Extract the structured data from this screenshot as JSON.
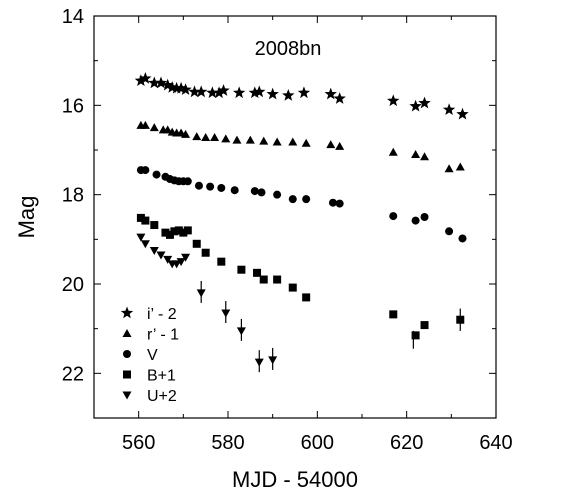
{
  "chart_data": {
    "type": "scatter",
    "title": "2008bn",
    "xlabel": "MJD - 54000",
    "ylabel": "Mag",
    "xlim": [
      550,
      640
    ],
    "ylim": [
      14,
      23
    ],
    "y_inverted": true,
    "xticks": [
      560,
      580,
      600,
      620,
      640
    ],
    "yticks": [
      14,
      16,
      18,
      20,
      22
    ],
    "xtick_labels": [
      "560",
      "580",
      "600",
      "620",
      "640"
    ],
    "ytick_labels": [
      "14",
      "16",
      "18",
      "20",
      "22"
    ],
    "grid": false,
    "legend_position": "bottom-left",
    "series": [
      {
        "name": "i’ - 2",
        "marker": "star",
        "points": [
          [
            560.5,
            15.45
          ],
          [
            561.5,
            15.4
          ],
          [
            563.5,
            15.5
          ],
          [
            565.0,
            15.5
          ],
          [
            566.5,
            15.55
          ],
          [
            567.5,
            15.6
          ],
          [
            568.5,
            15.62
          ],
          [
            569.5,
            15.62
          ],
          [
            570.5,
            15.65
          ],
          [
            572.5,
            15.7
          ],
          [
            574.0,
            15.7
          ],
          [
            576.5,
            15.72
          ],
          [
            578.0,
            15.72
          ],
          [
            579.0,
            15.67
          ],
          [
            582.5,
            15.72
          ],
          [
            586.0,
            15.72
          ],
          [
            587.0,
            15.7
          ],
          [
            590.0,
            15.75
          ],
          [
            593.5,
            15.78
          ],
          [
            597.0,
            15.72
          ],
          [
            603.0,
            15.75
          ],
          [
            605.0,
            15.85
          ],
          [
            617.0,
            15.9
          ],
          [
            622.0,
            16.02
          ],
          [
            624.0,
            15.95
          ],
          [
            629.5,
            16.1
          ],
          [
            632.5,
            16.2
          ]
        ]
      },
      {
        "name": "r’ - 1",
        "marker": "triangle-up",
        "points": [
          [
            560.5,
            16.45
          ],
          [
            561.5,
            16.45
          ],
          [
            563.5,
            16.5
          ],
          [
            565.5,
            16.55
          ],
          [
            566.5,
            16.55
          ],
          [
            567.5,
            16.6
          ],
          [
            568.5,
            16.62
          ],
          [
            569.5,
            16.62
          ],
          [
            570.5,
            16.65
          ],
          [
            573.0,
            16.7
          ],
          [
            575.0,
            16.72
          ],
          [
            577.0,
            16.72
          ],
          [
            579.5,
            16.75
          ],
          [
            582.0,
            16.78
          ],
          [
            585.0,
            16.78
          ],
          [
            588.0,
            16.8
          ],
          [
            591.0,
            16.82
          ],
          [
            594.5,
            16.82
          ],
          [
            597.5,
            16.85
          ],
          [
            603.0,
            16.88
          ],
          [
            605.0,
            16.92
          ],
          [
            617.0,
            17.05
          ],
          [
            622.0,
            17.1
          ],
          [
            624.0,
            17.15
          ],
          [
            629.5,
            17.42
          ],
          [
            632.0,
            17.38
          ]
        ]
      },
      {
        "name": "V",
        "marker": "circle",
        "points": [
          [
            560.5,
            17.45
          ],
          [
            561.5,
            17.45
          ],
          [
            564.0,
            17.55
          ],
          [
            566.0,
            17.6
          ],
          [
            567.0,
            17.65
          ],
          [
            568.0,
            17.68
          ],
          [
            569.0,
            17.7
          ],
          [
            570.0,
            17.7
          ],
          [
            571.0,
            17.7
          ],
          [
            573.5,
            17.8
          ],
          [
            576.0,
            17.82
          ],
          [
            578.5,
            17.85
          ],
          [
            581.5,
            17.9
          ],
          [
            586.0,
            17.92
          ],
          [
            587.5,
            17.95
          ],
          [
            591.0,
            18.0
          ],
          [
            594.5,
            18.1
          ],
          [
            597.5,
            18.1
          ],
          [
            603.5,
            18.18
          ],
          [
            605.0,
            18.2
          ],
          [
            617.0,
            18.48
          ],
          [
            622.0,
            18.58
          ],
          [
            624.0,
            18.5
          ],
          [
            629.5,
            18.82
          ],
          [
            632.5,
            18.98
          ]
        ]
      },
      {
        "name": "B+1",
        "marker": "square",
        "points": [
          [
            560.5,
            18.52
          ],
          [
            561.5,
            18.58
          ],
          [
            563.5,
            18.68
          ],
          [
            566.0,
            18.85
          ],
          [
            567.0,
            18.9
          ],
          [
            568.0,
            18.82
          ],
          [
            569.0,
            18.8
          ],
          [
            570.0,
            18.85
          ],
          [
            571.0,
            18.8
          ],
          [
            573.0,
            19.1
          ],
          [
            575.0,
            19.3
          ],
          [
            578.5,
            19.5
          ],
          [
            583.0,
            19.68
          ],
          [
            586.5,
            19.75
          ],
          [
            588.0,
            19.9
          ],
          [
            591.0,
            19.9
          ],
          [
            594.5,
            20.08
          ],
          [
            597.5,
            20.3
          ],
          [
            617.0,
            20.68
          ],
          [
            622.0,
            21.15
          ],
          [
            624.0,
            20.92
          ],
          [
            632.0,
            20.8
          ]
        ],
        "error_bars": [
          [
            [
              621.5,
              21.25
            ],
            [
              0.2
            ]
          ],
          [
            [
              632.0,
              20.8
            ],
            [
              0.25
            ]
          ]
        ]
      },
      {
        "name": "U+2",
        "marker": "triangle-down",
        "points": [
          [
            560.5,
            18.95
          ],
          [
            561.5,
            19.1
          ],
          [
            563.5,
            19.25
          ],
          [
            565.0,
            19.35
          ],
          [
            566.5,
            19.45
          ],
          [
            567.5,
            19.55
          ],
          [
            568.5,
            19.55
          ],
          [
            569.5,
            19.5
          ],
          [
            570.5,
            19.4
          ],
          [
            574.0,
            20.2
          ],
          [
            579.5,
            20.65
          ],
          [
            583.0,
            21.05
          ],
          [
            587.0,
            21.75
          ],
          [
            590.0,
            21.7
          ]
        ],
        "upper_limit_points": [
          [
            574.0,
            20.2
          ],
          [
            579.5,
            20.65
          ],
          [
            583.0,
            21.05
          ],
          [
            587.0,
            21.75
          ],
          [
            590.0,
            21.7
          ]
        ]
      }
    ]
  }
}
